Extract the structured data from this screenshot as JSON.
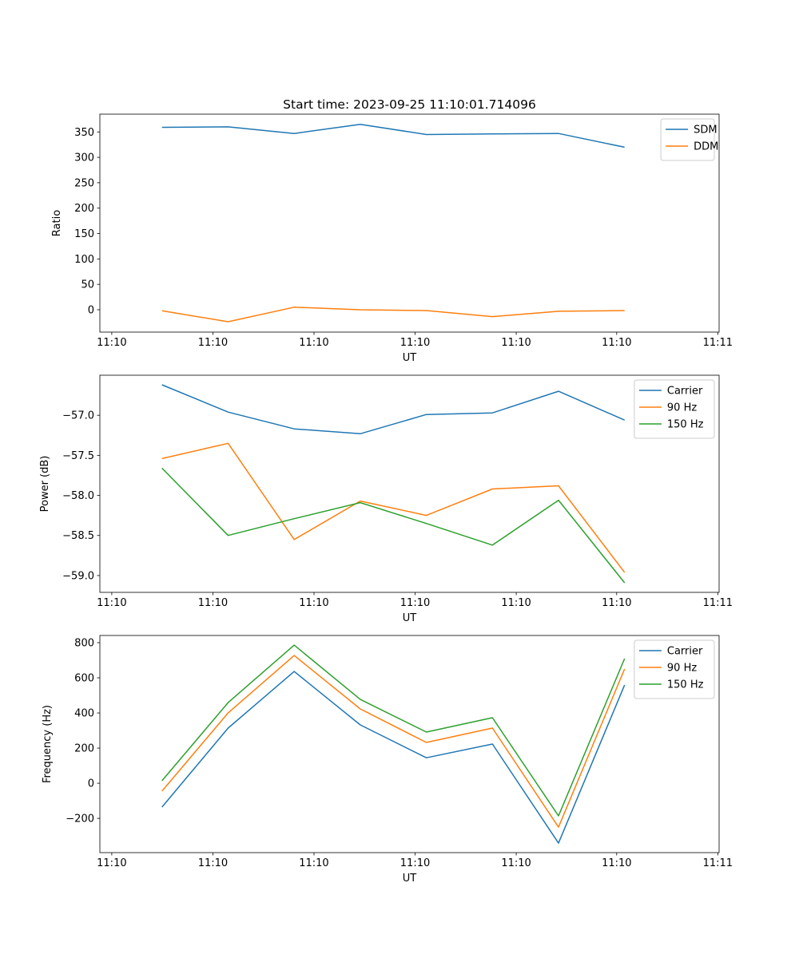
{
  "chart_data": [
    {
      "type": "line",
      "title": "Start time: 2023-09-25 11:10:01.714096",
      "xlabel": "UT",
      "ylabel": "Ratio",
      "x": [
        0,
        1,
        2,
        3,
        4,
        5,
        6,
        7
      ],
      "xlim": [
        -0.94,
        8.43
      ],
      "xticks": [
        -0.76,
        0.77,
        2.3,
        3.83,
        5.36,
        6.88,
        8.41
      ],
      "xtick_labels": [
        "11:10",
        "11:10",
        "11:10",
        "11:10",
        "11:10",
        "11:10",
        "11:11"
      ],
      "ylim": [
        -44,
        385
      ],
      "yticks": [
        0,
        50,
        100,
        150,
        200,
        250,
        300,
        350
      ],
      "ytick_labels": [
        "0",
        "50",
        "100",
        "150",
        "200",
        "250",
        "300",
        "350"
      ],
      "legend": "top-right",
      "series": [
        {
          "name": "SDM",
          "color": "#1f77b4",
          "values": [
            359,
            360,
            347,
            365,
            345,
            346,
            347,
            320
          ]
        },
        {
          "name": "DDM",
          "color": "#ff7f0e",
          "values": [
            -2,
            -23.5,
            5,
            0,
            -1.5,
            -13.5,
            -3,
            -1.5
          ]
        }
      ]
    },
    {
      "type": "line",
      "title": "",
      "xlabel": "UT",
      "ylabel": "Power (dB)",
      "x": [
        0,
        1,
        2,
        3,
        4,
        5,
        6,
        7
      ],
      "xlim": [
        -0.94,
        8.43
      ],
      "xticks": [
        -0.76,
        0.77,
        2.3,
        3.83,
        5.36,
        6.88,
        8.41
      ],
      "xtick_labels": [
        "11:10",
        "11:10",
        "11:10",
        "11:10",
        "11:10",
        "11:10",
        "11:11"
      ],
      "ylim": [
        -59.21,
        -56.5
      ],
      "yticks": [
        -59.0,
        -58.5,
        -58.0,
        -57.5,
        -57.0
      ],
      "ytick_labels": [
        "−59.0",
        "−58.5",
        "−58.0",
        "−57.5",
        "−57.0"
      ],
      "legend": "top-right",
      "series": [
        {
          "name": "Carrier",
          "color": "#1f77b4",
          "values": [
            -56.62,
            -56.96,
            -57.17,
            -57.23,
            -56.99,
            -56.97,
            -56.7,
            -57.06
          ]
        },
        {
          "name": "90 Hz",
          "color": "#ff7f0e",
          "values": [
            -57.54,
            -57.35,
            -58.55,
            -58.07,
            -58.25,
            -57.92,
            -57.88,
            -58.96
          ]
        },
        {
          "name": "150 Hz",
          "color": "#2ca02c",
          "values": [
            -57.66,
            -58.5,
            -58.29,
            -58.09,
            -58.35,
            -58.62,
            -58.06,
            -59.09
          ]
        }
      ]
    },
    {
      "type": "line",
      "title": "",
      "xlabel": "UT",
      "ylabel": "Frequency (Hz)",
      "x": [
        0,
        1,
        2,
        3,
        4,
        5,
        6,
        7
      ],
      "xlim": [
        -0.94,
        8.43
      ],
      "xticks": [
        -0.76,
        0.77,
        2.3,
        3.83,
        5.36,
        6.88,
        8.41
      ],
      "xtick_labels": [
        "11:10",
        "11:10",
        "11:10",
        "11:10",
        "11:10",
        "11:10",
        "11:11"
      ],
      "ylim": [
        -395,
        841
      ],
      "yticks": [
        -200,
        0,
        200,
        400,
        600,
        800
      ],
      "ytick_labels": [
        "−200",
        "0",
        "200",
        "400",
        "600",
        "800"
      ],
      "legend": "top-right",
      "series": [
        {
          "name": "Carrier",
          "color": "#1f77b4",
          "values": [
            -136,
            314,
            636,
            332,
            145,
            223,
            -341,
            559
          ]
        },
        {
          "name": "90 Hz",
          "color": "#ff7f0e",
          "values": [
            -45,
            400,
            727,
            423,
            232,
            314,
            -250,
            650
          ]
        },
        {
          "name": "150 Hz",
          "color": "#2ca02c",
          "values": [
            14,
            459,
            786,
            477,
            291,
            373,
            -186,
            709
          ]
        }
      ]
    }
  ]
}
